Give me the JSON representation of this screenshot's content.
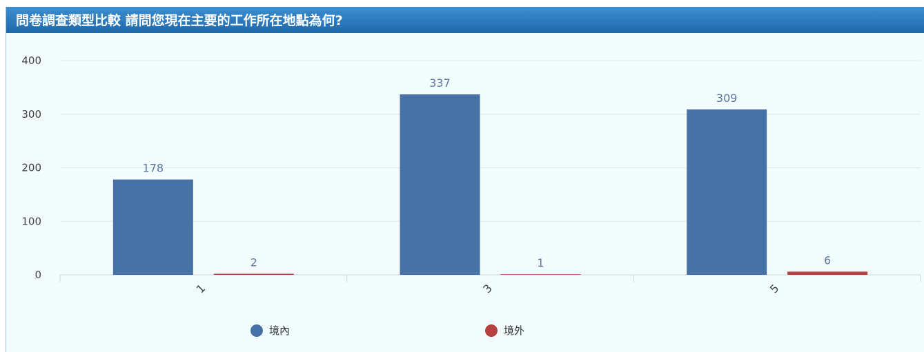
{
  "header": {
    "title": "問卷調查類型比較 請問您現在主要的工作所在地點為何?"
  },
  "chart_data": {
    "type": "bar",
    "categories": [
      "1",
      "3",
      "5"
    ],
    "series": [
      {
        "name": "境內",
        "values": [
          178,
          337,
          309
        ],
        "color": "#4672a6"
      },
      {
        "name": "境外",
        "values": [
          2,
          1,
          6
        ],
        "color": "#b54141"
      }
    ],
    "ylim": [
      0,
      400
    ],
    "yticks": [
      0,
      100,
      200,
      300,
      400
    ],
    "grid": true,
    "legend_position": "bottom-center",
    "show_data_labels": true,
    "xlabel": "",
    "ylabel": ""
  }
}
